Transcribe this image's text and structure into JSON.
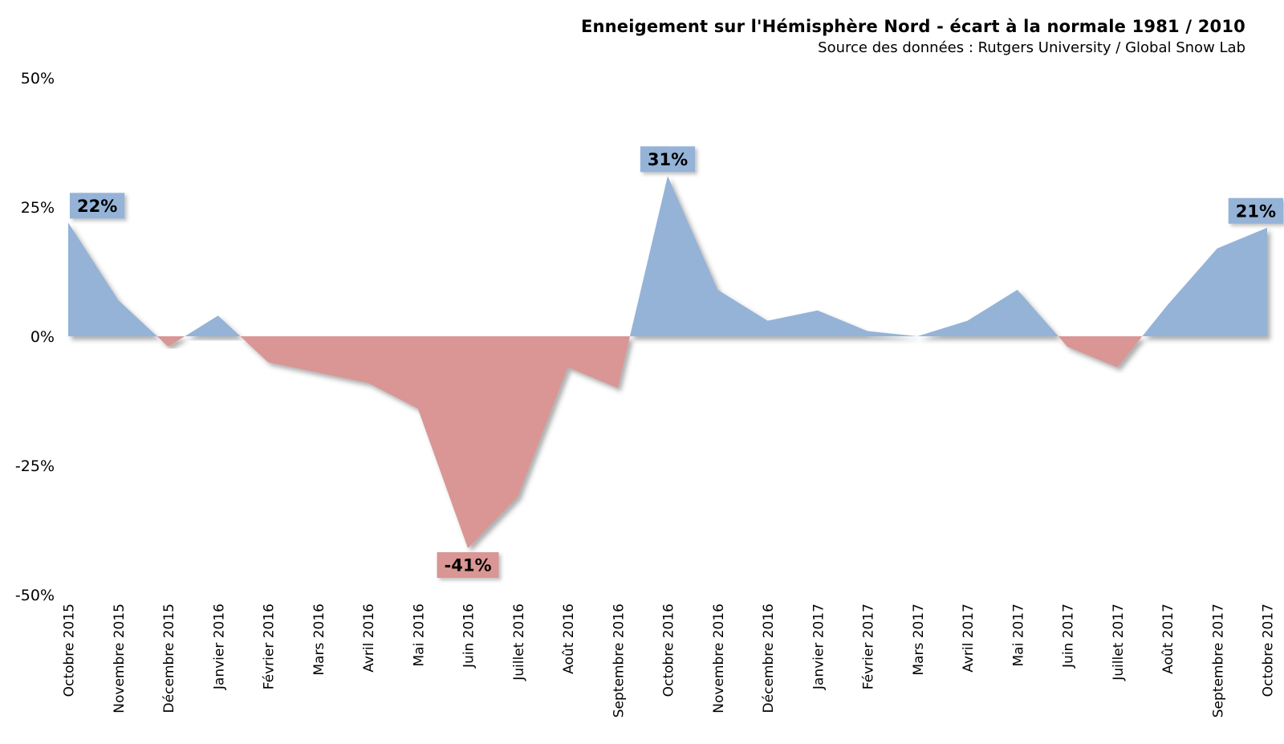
{
  "title": "Enneigement sur l'Hémisphère Nord - écart à la normale 1981 / 2010",
  "subtitle": "Source des données : Rutgers University / Global Snow Lab",
  "chart_data": {
    "type": "area",
    "categories": [
      "Octobre 2015",
      "Novembre 2015",
      "Décembre 2015",
      "Janvier 2016",
      "Février 2016",
      "Mars 2016",
      "Avril 2016",
      "Mai 2016",
      "Juin 2016",
      "Juillet 2016",
      "Août 2016",
      "Septembre 2016",
      "Octobre 2016",
      "Novembre 2016",
      "Décembre 2016",
      "Janvier 2017",
      "Février 2017",
      "Mars 2017",
      "Avril 2017",
      "Mai 2017",
      "Juin 2017",
      "Juillet 2017",
      "Août 2017",
      "Septembre 2017",
      "Octobre 2017"
    ],
    "values": [
      22,
      7,
      -2,
      4,
      -5,
      -7,
      -9,
      -14,
      -41,
      -31,
      -6,
      -10,
      31,
      9,
      3,
      5,
      1,
      0,
      3,
      9,
      -2,
      -6,
      6,
      17,
      21
    ],
    "unit": "%",
    "ylim": [
      -50,
      50
    ],
    "yticks": [
      {
        "value": 50,
        "label": "50%"
      },
      {
        "value": 25,
        "label": "25%"
      },
      {
        "value": 0,
        "label": "0%"
      },
      {
        "value": -25,
        "label": "-25%"
      },
      {
        "value": -50,
        "label": "-50%"
      }
    ],
    "grid": true,
    "legend": false,
    "annotations": [
      {
        "index": 0,
        "category": "Octobre 2015",
        "value": 22,
        "label": "22%",
        "tone": "positive"
      },
      {
        "index": 8,
        "category": "Juin 2016",
        "value": -41,
        "label": "-41%",
        "tone": "negative"
      },
      {
        "index": 12,
        "category": "Octobre 2016",
        "value": 31,
        "label": "31%",
        "tone": "positive"
      },
      {
        "index": 24,
        "category": "Octobre 2017",
        "value": 21,
        "label": "21%",
        "tone": "positive"
      }
    ],
    "colors": {
      "positive_fill": "#95B3D7",
      "negative_fill": "#D99694",
      "gridline": "#7F7F7F",
      "zero_axis": "#595959",
      "label_text": "#000000"
    }
  }
}
